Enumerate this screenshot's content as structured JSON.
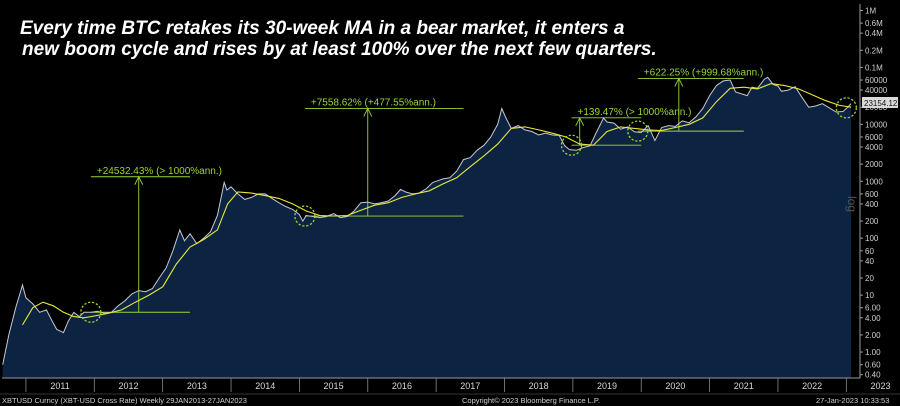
{
  "chart_data": {
    "type": "line",
    "title_lines": [
      "Every time BTC retakes its 30-week MA in a bear market, it enters a",
      "new boom cycle and rises by at least 100% over the next few quarters."
    ],
    "y_scale": "log",
    "y_scale_label": "log",
    "ylim": [
      0.35,
      1300000
    ],
    "y_ticks": [
      {
        "v": 1000000,
        "label": "1M"
      },
      {
        "v": 600000,
        "label": "0.6M"
      },
      {
        "v": 400000,
        "label": "0.4M"
      },
      {
        "v": 200000,
        "label": "0.2M"
      },
      {
        "v": 100000,
        "label": "0.1M"
      },
      {
        "v": 60000,
        "label": "60000"
      },
      {
        "v": 40000,
        "label": "40000"
      },
      {
        "v": 20000,
        "label": "20000"
      },
      {
        "v": 10000,
        "label": "10000"
      },
      {
        "v": 6000,
        "label": "6000"
      },
      {
        "v": 4000,
        "label": "4000"
      },
      {
        "v": 2000,
        "label": "2000"
      },
      {
        "v": 1000,
        "label": "1000"
      },
      {
        "v": 600,
        "label": "600"
      },
      {
        "v": 400,
        "label": "400"
      },
      {
        "v": 200,
        "label": "200"
      },
      {
        "v": 100,
        "label": "100"
      },
      {
        "v": 60,
        "label": "60"
      },
      {
        "v": 40,
        "label": "40"
      },
      {
        "v": 20,
        "label": "20"
      },
      {
        "v": 10,
        "label": "10"
      },
      {
        "v": 6,
        "label": "6.00"
      },
      {
        "v": 4,
        "label": "4.00"
      },
      {
        "v": 2,
        "label": "2.00"
      },
      {
        "v": 1,
        "label": "1.00"
      },
      {
        "v": 0.6,
        "label": "0.60"
      },
      {
        "v": 0.4,
        "label": "0.40"
      }
    ],
    "xlim": [
      2010.65,
      2023.2
    ],
    "x_ticks": [
      "2011",
      "2012",
      "2013",
      "2014",
      "2015",
      "2016",
      "2017",
      "2018",
      "2019",
      "2020",
      "2021",
      "2022",
      "2023"
    ],
    "series": [
      {
        "kind": "price",
        "points": [
          [
            2010.66,
            0.6
          ],
          [
            2010.75,
            2.0
          ],
          [
            2010.85,
            6.0
          ],
          [
            2010.95,
            15.0
          ],
          [
            2011.0,
            9.0
          ],
          [
            2011.1,
            7.0
          ],
          [
            2011.2,
            5.0
          ],
          [
            2011.3,
            5.5
          ],
          [
            2011.4,
            3.2
          ],
          [
            2011.45,
            2.5
          ],
          [
            2011.55,
            2.2
          ],
          [
            2011.62,
            3.5
          ],
          [
            2011.7,
            5.0
          ],
          [
            2011.78,
            4.2
          ],
          [
            2011.85,
            5.0
          ],
          [
            2011.95,
            5.0
          ],
          [
            2012.05,
            5.2
          ],
          [
            2012.15,
            4.8
          ],
          [
            2012.25,
            5.0
          ],
          [
            2012.35,
            6.5
          ],
          [
            2012.45,
            8.0
          ],
          [
            2012.55,
            10.5
          ],
          [
            2012.65,
            12.0
          ],
          [
            2012.75,
            11.5
          ],
          [
            2012.85,
            13.0
          ],
          [
            2012.95,
            20.0
          ],
          [
            2013.05,
            30.0
          ],
          [
            2013.15,
            60.0
          ],
          [
            2013.25,
            140.0
          ],
          [
            2013.32,
            90.0
          ],
          [
            2013.4,
            120.0
          ],
          [
            2013.5,
            80.0
          ],
          [
            2013.6,
            100.0
          ],
          [
            2013.7,
            130.0
          ],
          [
            2013.8,
            250.0
          ],
          [
            2013.9,
            950.0
          ],
          [
            2013.94,
            700.0
          ],
          [
            2014.0,
            800.0
          ],
          [
            2014.1,
            600.0
          ],
          [
            2014.2,
            480.0
          ],
          [
            2014.3,
            520.0
          ],
          [
            2014.4,
            600.0
          ],
          [
            2014.5,
            600.0
          ],
          [
            2014.6,
            500.0
          ],
          [
            2014.7,
            420.0
          ],
          [
            2014.8,
            360.0
          ],
          [
            2014.9,
            320.0
          ],
          [
            2015.0,
            260.0
          ],
          [
            2015.05,
            200.0
          ],
          [
            2015.1,
            250.0
          ],
          [
            2015.2,
            240.0
          ],
          [
            2015.3,
            230.0
          ],
          [
            2015.4,
            240.0
          ],
          [
            2015.5,
            270.0
          ],
          [
            2015.6,
            230.0
          ],
          [
            2015.7,
            240.0
          ],
          [
            2015.8,
            300.0
          ],
          [
            2015.9,
            420.0
          ],
          [
            2016.0,
            430.0
          ],
          [
            2016.1,
            400.0
          ],
          [
            2016.2,
            420.0
          ],
          [
            2016.3,
            450.0
          ],
          [
            2016.4,
            560.0
          ],
          [
            2016.48,
            720.0
          ],
          [
            2016.55,
            650.0
          ],
          [
            2016.65,
            600.0
          ],
          [
            2016.75,
            620.0
          ],
          [
            2016.85,
            730.0
          ],
          [
            2016.95,
            950.0
          ],
          [
            2017.0,
            1000.0
          ],
          [
            2017.1,
            1100.0
          ],
          [
            2017.2,
            1150.0
          ],
          [
            2017.3,
            1500.0
          ],
          [
            2017.4,
            2400.0
          ],
          [
            2017.5,
            2600.0
          ],
          [
            2017.6,
            3500.0
          ],
          [
            2017.7,
            4300.0
          ],
          [
            2017.8,
            6000.0
          ],
          [
            2017.9,
            10000.0
          ],
          [
            2017.96,
            19000.0
          ],
          [
            2018.02,
            13000.0
          ],
          [
            2018.1,
            8500.0
          ],
          [
            2018.2,
            9500.0
          ],
          [
            2018.3,
            8000.0
          ],
          [
            2018.4,
            7500.0
          ],
          [
            2018.5,
            6500.0
          ],
          [
            2018.6,
            7000.0
          ],
          [
            2018.7,
            6500.0
          ],
          [
            2018.8,
            6400.0
          ],
          [
            2018.88,
            4200.0
          ],
          [
            2018.95,
            3600.0
          ],
          [
            2019.05,
            3500.0
          ],
          [
            2019.15,
            3900.0
          ],
          [
            2019.25,
            4200.0
          ],
          [
            2019.35,
            7500.0
          ],
          [
            2019.45,
            13000.0
          ],
          [
            2019.5,
            11000.0
          ],
          [
            2019.6,
            10500.0
          ],
          [
            2019.7,
            8200.0
          ],
          [
            2019.8,
            9000.0
          ],
          [
            2019.9,
            7400.0
          ],
          [
            2020.0,
            7200.0
          ],
          [
            2020.1,
            9500.0
          ],
          [
            2020.2,
            5200.0
          ],
          [
            2020.3,
            8800.0
          ],
          [
            2020.4,
            9500.0
          ],
          [
            2020.5,
            9200.0
          ],
          [
            2020.6,
            11500.0
          ],
          [
            2020.7,
            10700.0
          ],
          [
            2020.8,
            13500.0
          ],
          [
            2020.9,
            19000.0
          ],
          [
            2021.0,
            32000.0
          ],
          [
            2021.1,
            48000.0
          ],
          [
            2021.2,
            58000.0
          ],
          [
            2021.3,
            60000.0
          ],
          [
            2021.38,
            37000.0
          ],
          [
            2021.48,
            34000.0
          ],
          [
            2021.55,
            32000.0
          ],
          [
            2021.62,
            45000.0
          ],
          [
            2021.7,
            43000.0
          ],
          [
            2021.8,
            62000.0
          ],
          [
            2021.85,
            67000.0
          ],
          [
            2021.93,
            50000.0
          ],
          [
            2022.0,
            47000.0
          ],
          [
            2022.05,
            38000.0
          ],
          [
            2022.15,
            40000.0
          ],
          [
            2022.25,
            46000.0
          ],
          [
            2022.35,
            30000.0
          ],
          [
            2022.45,
            20000.0
          ],
          [
            2022.55,
            21000.0
          ],
          [
            2022.65,
            23000.0
          ],
          [
            2022.75,
            19500.0
          ],
          [
            2022.85,
            16500.0
          ],
          [
            2022.95,
            16800.0
          ],
          [
            2023.02,
            20000.0
          ],
          [
            2023.07,
            23154.12
          ]
        ]
      },
      {
        "kind": "ma",
        "name": "30-week MA",
        "points": [
          [
            2010.95,
            3.0
          ],
          [
            2011.1,
            6.0
          ],
          [
            2011.25,
            7.5
          ],
          [
            2011.4,
            6.5
          ],
          [
            2011.55,
            5.0
          ],
          [
            2011.7,
            4.2
          ],
          [
            2011.85,
            4.0
          ],
          [
            2012.0,
            4.3
          ],
          [
            2012.2,
            4.8
          ],
          [
            2012.4,
            5.5
          ],
          [
            2012.6,
            7.5
          ],
          [
            2012.8,
            10.0
          ],
          [
            2013.0,
            14.0
          ],
          [
            2013.2,
            35.0
          ],
          [
            2013.4,
            70.0
          ],
          [
            2013.6,
            95.0
          ],
          [
            2013.8,
            140.0
          ],
          [
            2013.95,
            400.0
          ],
          [
            2014.1,
            650.0
          ],
          [
            2014.3,
            620.0
          ],
          [
            2014.5,
            560.0
          ],
          [
            2014.7,
            500.0
          ],
          [
            2014.9,
            400.0
          ],
          [
            2015.1,
            300.0
          ],
          [
            2015.3,
            250.0
          ],
          [
            2015.5,
            245.0
          ],
          [
            2015.7,
            250.0
          ],
          [
            2015.9,
            310.0
          ],
          [
            2016.1,
            380.0
          ],
          [
            2016.3,
            420.0
          ],
          [
            2016.5,
            520.0
          ],
          [
            2016.7,
            600.0
          ],
          [
            2016.9,
            680.0
          ],
          [
            2017.1,
            900.0
          ],
          [
            2017.3,
            1150.0
          ],
          [
            2017.5,
            1800.0
          ],
          [
            2017.7,
            2800.0
          ],
          [
            2017.9,
            4500.0
          ],
          [
            2018.1,
            8500.0
          ],
          [
            2018.3,
            9000.0
          ],
          [
            2018.5,
            8000.0
          ],
          [
            2018.7,
            7000.0
          ],
          [
            2018.9,
            6000.0
          ],
          [
            2019.1,
            4500.0
          ],
          [
            2019.3,
            4300.0
          ],
          [
            2019.5,
            7500.0
          ],
          [
            2019.7,
            9000.0
          ],
          [
            2019.9,
            8500.0
          ],
          [
            2020.1,
            8000.0
          ],
          [
            2020.3,
            7800.0
          ],
          [
            2020.5,
            8800.0
          ],
          [
            2020.7,
            10000.0
          ],
          [
            2020.9,
            13000.0
          ],
          [
            2021.1,
            25000.0
          ],
          [
            2021.3,
            43000.0
          ],
          [
            2021.5,
            45000.0
          ],
          [
            2021.7,
            42000.0
          ],
          [
            2021.9,
            52000.0
          ],
          [
            2022.1,
            48000.0
          ],
          [
            2022.3,
            42000.0
          ],
          [
            2022.5,
            33000.0
          ],
          [
            2022.7,
            26000.0
          ],
          [
            2022.9,
            21500.0
          ],
          [
            2023.07,
            20000.0
          ]
        ]
      }
    ],
    "last_value_label": "23154.12",
    "markers": [
      {
        "x": 2011.95,
        "y": 5.0
      },
      {
        "x": 2015.08,
        "y": 245.0
      },
      {
        "x": 2018.98,
        "y": 4300.0
      },
      {
        "x": 2019.95,
        "y": 7600.0
      },
      {
        "x": 2023.0,
        "y": 19500.0
      }
    ],
    "annotations": [
      {
        "label": "+24532.43% (> 1000%ann.)",
        "x1": 2011.95,
        "x2": 2013.4,
        "y_base": 5.0,
        "y_top": 1200.0,
        "arrow_x": 2012.65
      },
      {
        "label": "+7558.62% (+477.55%ann.)",
        "x1": 2015.08,
        "x2": 2017.4,
        "y_base": 245.0,
        "y_top": 19000.0,
        "arrow_x": 2016.0
      },
      {
        "label": "+139.47% (> 1000%ann.)",
        "x1": 2018.98,
        "x2": 2020.0,
        "y_base": 4300.0,
        "y_top": 13000.0,
        "arrow_x": 2019.1
      },
      {
        "label": "+622.25% (+999.68%ann.)",
        "x1": 2019.95,
        "x2": 2021.5,
        "y_base": 7600.0,
        "y_top": 64000.0,
        "arrow_x": 2020.55
      }
    ],
    "colors": {
      "background": "#000000",
      "area_fill": "#0c2442",
      "price_line": "#c8c8d2",
      "ma_line": "#e8e83c",
      "annotation": "#9ad631",
      "marker": "#9ad631",
      "last_value_bg": "#d9d9d9"
    },
    "footer": {
      "left": "XBTUSD Curncy (XBT-USD Cross Rate) Weekly 29JAN2013-27JAN2023",
      "center": "Copyright© 2023 Bloomberg Finance L.P.",
      "right": "27-Jan-2023 10:33:53"
    }
  }
}
